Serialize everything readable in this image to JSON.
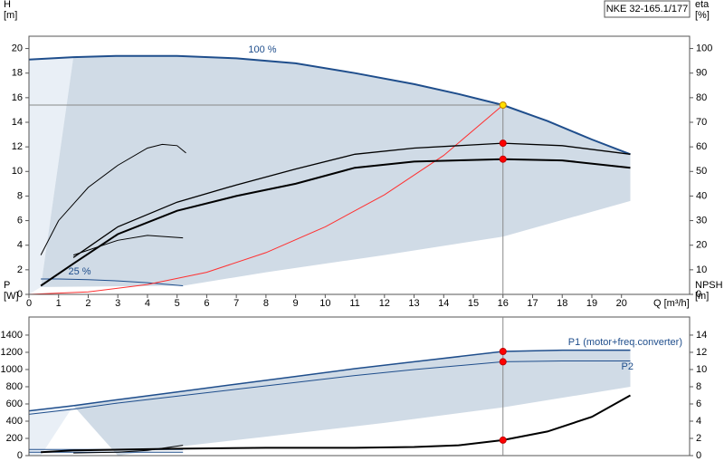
{
  "chart_data": [
    {
      "type": "line",
      "title": "NKE 32-165.1/177",
      "ylabel": [
        "H",
        "[m]"
      ],
      "y2label": [
        "eta",
        "[%]"
      ],
      "xlabel": "Q [m³/h]",
      "xlim": [
        0,
        22.3
      ],
      "xticks": [
        0,
        1,
        2,
        3,
        4,
        5,
        6,
        7,
        8,
        9,
        10,
        11,
        12,
        13,
        14,
        15,
        16,
        17,
        18,
        19,
        20
      ],
      "ylim": [
        0,
        21
      ],
      "yticks": [
        0,
        2,
        4,
        6,
        8,
        10,
        12,
        14,
        16,
        18,
        20
      ],
      "y2lim": [
        0,
        105
      ],
      "y2ticks": [
        0,
        10,
        20,
        30,
        40,
        50,
        60,
        70,
        80,
        90,
        100
      ],
      "series": [
        {
          "color": "#e9eff6",
          "fill": true,
          "x": [
            0,
            1.5,
            0.4,
            0
          ],
          "values": [
            19.1,
            19.3,
            0.6,
            0
          ]
        },
        {
          "color": "#d0dbe6",
          "fill": true,
          "x": [
            1.5,
            3,
            5,
            7,
            9,
            11,
            13,
            14.5,
            16,
            17.5,
            19,
            20.3,
            20.3,
            16,
            12,
            8,
            5.2,
            0.4
          ],
          "values": [
            19.3,
            19.4,
            19.4,
            19.2,
            18.8,
            18.0,
            17.1,
            16.3,
            15.4,
            14.1,
            12.6,
            11.4,
            7.6,
            4.7,
            3.2,
            1.8,
            0.7,
            0.6
          ]
        },
        {
          "name": "100 %",
          "color": "#1f4e8c",
          "width": 2,
          "x": [
            0,
            1.5,
            3,
            5,
            7,
            9,
            11,
            13,
            14.5,
            16,
            17.5,
            19,
            20.3
          ],
          "values": [
            19.1,
            19.3,
            19.4,
            19.4,
            19.2,
            18.8,
            18.0,
            17.1,
            16.3,
            15.4,
            14.1,
            12.6,
            11.4
          ]
        },
        {
          "name": "25 %",
          "color": "#1f4e8c",
          "width": 1,
          "x": [
            0.4,
            1,
            2,
            3,
            4,
            5.2
          ],
          "values": [
            1.25,
            1.25,
            1.2,
            1.1,
            0.95,
            0.7
          ]
        },
        {
          "color": "#ff3030",
          "width": 1,
          "x": [
            0,
            2,
            4,
            6,
            8,
            10,
            12,
            14,
            16
          ],
          "values": [
            0,
            0.2,
            0.8,
            1.8,
            3.4,
            5.5,
            8.1,
            11.3,
            15.4
          ]
        },
        {
          "color": "#000000",
          "width": 1,
          "axis": "y2",
          "x": [
            0.4,
            1,
            2,
            3,
            4,
            4.5,
            5,
            5.3
          ],
          "values": [
            16,
            30,
            43.5,
            52.5,
            59.5,
            61,
            60.5,
            57.5
          ]
        },
        {
          "color": "#000000",
          "width": 1,
          "axis": "y2",
          "x": [
            1.5,
            3,
            4,
            5.2
          ],
          "values": [
            16,
            22,
            24,
            23
          ]
        },
        {
          "color": "#000000",
          "width": 1.3,
          "axis": "y2",
          "x": [
            1.5,
            3,
            5,
            7,
            9,
            11,
            13,
            16,
            18,
            20.3
          ],
          "values": [
            15,
            27.5,
            37.5,
            44.5,
            51,
            57,
            59.5,
            61.5,
            60.5,
            57
          ]
        },
        {
          "color": "#000000",
          "width": 2,
          "axis": "y2",
          "x": [
            0.4,
            1.5,
            3,
            5,
            7,
            9,
            11,
            13,
            16,
            18,
            20.3
          ],
          "values": [
            3.5,
            12.5,
            24.5,
            34,
            40,
            45,
            51.5,
            54,
            55,
            54.5,
            51.5
          ]
        },
        {
          "color": "#ffe000",
          "marker": true,
          "x": [
            16
          ],
          "values": [
            15.4
          ]
        },
        {
          "color": "#ff0000",
          "marker": true,
          "axis": "y2",
          "x": [
            16,
            16
          ],
          "values": [
            61.5,
            55
          ]
        }
      ]
    },
    {
      "type": "line",
      "ylabel": [
        "P",
        "[W]"
      ],
      "y2label": [
        "NPSH",
        "[m]"
      ],
      "xlim": [
        0,
        22.3
      ],
      "ylim": [
        0,
        1610
      ],
      "yticks": [
        0,
        200,
        400,
        600,
        800,
        1000,
        1200,
        1400
      ],
      "y2lim": [
        0,
        16.1
      ],
      "y2ticks": [
        0,
        2,
        4,
        6,
        8,
        10,
        12,
        14
      ],
      "series": [
        {
          "color": "#e9eff6",
          "fill": true,
          "x": [
            0,
            1.5,
            0.4,
            0
          ],
          "values": [
            520,
            580,
            0,
            0
          ]
        },
        {
          "color": "#d0dbe6",
          "fill": true,
          "x": [
            1.5,
            3,
            5,
            7,
            9,
            11,
            13,
            16,
            18,
            20.3,
            20.3,
            16,
            12,
            8,
            5.2,
            3
          ],
          "values": [
            580,
            650,
            740,
            830,
            920,
            1010,
            1090,
            1210,
            1225,
            1225,
            800,
            560,
            380,
            220,
            110,
            0
          ]
        },
        {
          "name": "P1 (motor+freq.converter)",
          "color": "#1f4e8c",
          "width": 1.5,
          "x": [
            0,
            1.5,
            3,
            5,
            7,
            9,
            11,
            13,
            16,
            18,
            20.3
          ],
          "values": [
            520,
            580,
            650,
            740,
            830,
            920,
            1010,
            1090,
            1210,
            1225,
            1225
          ]
        },
        {
          "name": "P2",
          "color": "#1f4e8c",
          "width": 1,
          "x": [
            0,
            1.5,
            3,
            5,
            7,
            9,
            11,
            13,
            16,
            18,
            20.3
          ],
          "values": [
            480,
            540,
            610,
            690,
            770,
            850,
            930,
            1000,
            1090,
            1100,
            1100
          ]
        },
        {
          "color": "#1f4e8c",
          "width": 1,
          "x": [
            0,
            5.2
          ],
          "values": [
            70,
            70
          ]
        },
        {
          "color": "#1f4e8c",
          "width": 1,
          "x": [
            0,
            5.2
          ],
          "values": [
            40,
            40
          ]
        },
        {
          "color": "#000000",
          "width": 1,
          "axis": "y2",
          "x": [
            1.5,
            3,
            4,
            5.2
          ],
          "values": [
            0.3,
            0.4,
            0.6,
            1.2
          ]
        },
        {
          "color": "#000000",
          "width": 2,
          "axis": "y2",
          "x": [
            0.4,
            1.5,
            5,
            8,
            11,
            13,
            14.5,
            16,
            17.5,
            19,
            20.3
          ],
          "values": [
            0.4,
            0.6,
            0.8,
            0.9,
            0.9,
            1.0,
            1.2,
            1.8,
            2.8,
            4.5,
            7.0
          ]
        },
        {
          "color": "#ff0000",
          "marker": true,
          "x": [
            16,
            16
          ],
          "values": [
            1210,
            1090
          ]
        },
        {
          "color": "#ff0000",
          "marker": true,
          "axis": "y2",
          "x": [
            16
          ],
          "values": [
            1.8
          ]
        }
      ]
    }
  ]
}
